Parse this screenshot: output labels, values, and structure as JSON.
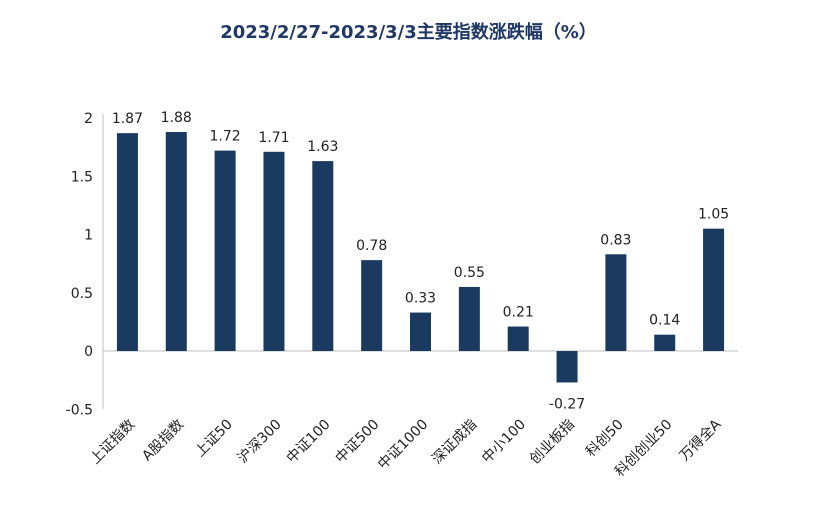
{
  "chart_data": {
    "type": "bar",
    "title": "2023/2/27-2023/3/3主要指数涨跌幅（%）",
    "xlabel": "",
    "ylabel": "",
    "categories": [
      "上证指数",
      "A股指数",
      "上证50",
      "沪深300",
      "中证100",
      "中证500",
      "中证1000",
      "深证成指",
      "中小100",
      "创业板指",
      "科创50",
      "科创创业50",
      "万得全A"
    ],
    "values": [
      1.87,
      1.88,
      1.72,
      1.71,
      1.63,
      0.78,
      0.33,
      0.55,
      0.21,
      -0.27,
      0.83,
      0.14,
      1.05
    ],
    "value_labels": [
      "1.87",
      "1.88",
      "1.72",
      "1.71",
      "1.63",
      "0.78",
      "0.33",
      "0.55",
      "0.21",
      "-0.27",
      "0.83",
      "0.14",
      "1.05"
    ],
    "yticks": [
      "-0.5",
      "0",
      "0.5",
      "1",
      "1.5",
      "2"
    ],
    "ylim": [
      -0.5,
      2
    ],
    "grid": false,
    "colors": {
      "bar": "#1b3a5f",
      "title": "#1f3864",
      "axis": "#bfbfbf",
      "text": "#222222"
    }
  }
}
